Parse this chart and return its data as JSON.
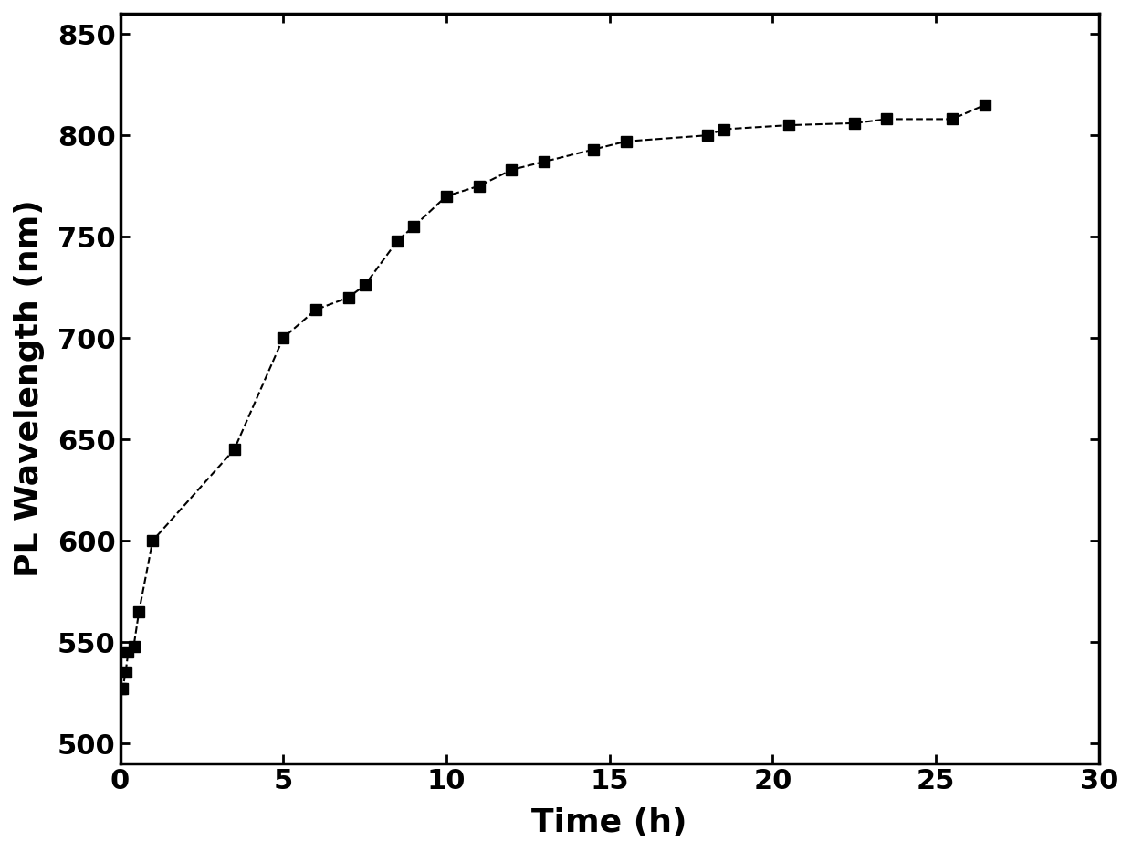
{
  "x": [
    0.0,
    0.08,
    0.17,
    0.25,
    0.42,
    0.58,
    1.0,
    3.5,
    5.0,
    6.0,
    7.0,
    7.5,
    8.5,
    9.0,
    10.0,
    11.0,
    12.0,
    13.0,
    14.5,
    15.5,
    18.0,
    18.5,
    20.5,
    22.5,
    23.5,
    25.5,
    26.5
  ],
  "y": [
    527,
    527,
    535,
    545,
    548,
    565,
    600,
    645,
    700,
    714,
    720,
    726,
    748,
    755,
    770,
    775,
    783,
    787,
    793,
    797,
    800,
    803,
    805,
    806,
    808,
    808,
    815
  ],
  "xlabel": "Time (h)",
  "ylabel": "PL Wavelength (nm)",
  "xlim": [
    0,
    30
  ],
  "ylim": [
    490,
    860
  ],
  "xticks": [
    0,
    5,
    10,
    15,
    20,
    25,
    30
  ],
  "yticks": [
    500,
    550,
    600,
    650,
    700,
    750,
    800,
    850
  ],
  "marker": "s",
  "marker_size": 9,
  "marker_color": "#000000",
  "line_style": "--",
  "line_color": "#000000",
  "line_width": 1.5,
  "background_color": "#ffffff",
  "xlabel_fontsize": 26,
  "ylabel_fontsize": 26,
  "tick_fontsize": 22
}
